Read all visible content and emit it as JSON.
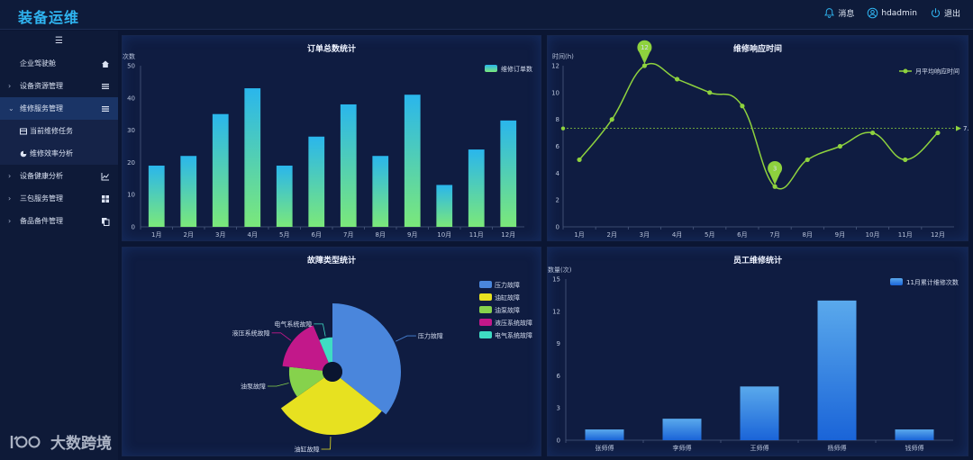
{
  "app": {
    "title": "装备运维"
  },
  "topnav": [
    {
      "icon": "bell-icon",
      "label": "消息"
    },
    {
      "icon": "user-icon",
      "label": "hdadmin"
    },
    {
      "icon": "power-icon",
      "label": "退出"
    }
  ],
  "sidebar": {
    "toggle": "☰",
    "items": [
      {
        "label": "企业驾驶舱",
        "icon": "home-icon"
      },
      {
        "label": "设备资源管理",
        "icon": "list-icon",
        "expandable": true
      },
      {
        "label": "维修服务管理",
        "icon": "list-icon",
        "expandable": true,
        "expanded": true,
        "active": true
      },
      {
        "label": "当前维修任务",
        "icon": "table-icon",
        "sub": true
      },
      {
        "label": "维修效率分析",
        "icon": "pie-icon",
        "sub": true
      },
      {
        "label": "设备健康分析",
        "icon": "chart-icon",
        "expandable": true
      },
      {
        "label": "三包服务管理",
        "icon": "grid-icon",
        "expandable": true
      },
      {
        "label": "备品备件管理",
        "icon": "copy-icon",
        "expandable": true
      }
    ]
  },
  "watermark": "大数跨境",
  "colors": {
    "accent": "#2fb4f0",
    "bar_top": "#2ab6ec",
    "bar_bottom": "#7be87a",
    "line": "#8ed23e",
    "blue_bar": "#2a7fe0"
  },
  "chart_data": [
    {
      "type": "bar",
      "title": "订单总数统计",
      "ylabel": "次数",
      "categories": [
        "1月",
        "2月",
        "3月",
        "4月",
        "5月",
        "6月",
        "7月",
        "8月",
        "9月",
        "10月",
        "11月",
        "12月"
      ],
      "series": [
        {
          "name": "维修订单数",
          "values": [
            19,
            22,
            35,
            43,
            19,
            28,
            38,
            22,
            41,
            13,
            24,
            33
          ]
        }
      ],
      "ylim": [
        0,
        50
      ],
      "yticks": [
        "0",
        "10",
        "20",
        "30",
        "40",
        "50"
      ],
      "legend": "top-right"
    },
    {
      "type": "line",
      "title": "维修响应时间",
      "ylabel": "时间(h)",
      "categories": [
        "1月",
        "2月",
        "3月",
        "4月",
        "5月",
        "6月",
        "7月",
        "8月",
        "9月",
        "10月",
        "11月",
        "12月"
      ],
      "series": [
        {
          "name": "月平均响应时间",
          "values": [
            5,
            8,
            12,
            11,
            10,
            9,
            3,
            5,
            6,
            7,
            5,
            7
          ]
        }
      ],
      "ylim": [
        0,
        12
      ],
      "yticks": [
        "0",
        "2",
        "4",
        "6",
        "8",
        "10",
        "12"
      ],
      "average": 7.33,
      "average_label": "7.33",
      "max_label": "12",
      "min_label": "3",
      "legend": "top-right"
    },
    {
      "type": "pie",
      "title": "故障类型统计",
      "rose": true,
      "slices": [
        {
          "label": "压力故障",
          "value": 40,
          "color": "#4a86dc"
        },
        {
          "label": "油缸故障",
          "value": 33,
          "color": "#e7e120"
        },
        {
          "label": "油泵故障",
          "value": 13,
          "color": "#86d24c"
        },
        {
          "label": "液压系统故障",
          "value": 19,
          "color": "#c2188a"
        },
        {
          "label": "电气系统故障",
          "value": 7,
          "color": "#3fdcc3"
        }
      ],
      "legend": "right"
    },
    {
      "type": "bar",
      "title": "员工维修统计",
      "ylabel": "数量(次)",
      "categories": [
        "张师傅",
        "李师傅",
        "王师傅",
        "杨师傅",
        "钱师傅"
      ],
      "series": [
        {
          "name": "11月累计维修次数",
          "values": [
            1,
            2,
            5,
            13,
            1
          ]
        }
      ],
      "ylim": [
        0,
        15
      ],
      "yticks": [
        "0",
        "3",
        "6",
        "9",
        "12",
        "15"
      ],
      "legend": "top-right"
    }
  ]
}
